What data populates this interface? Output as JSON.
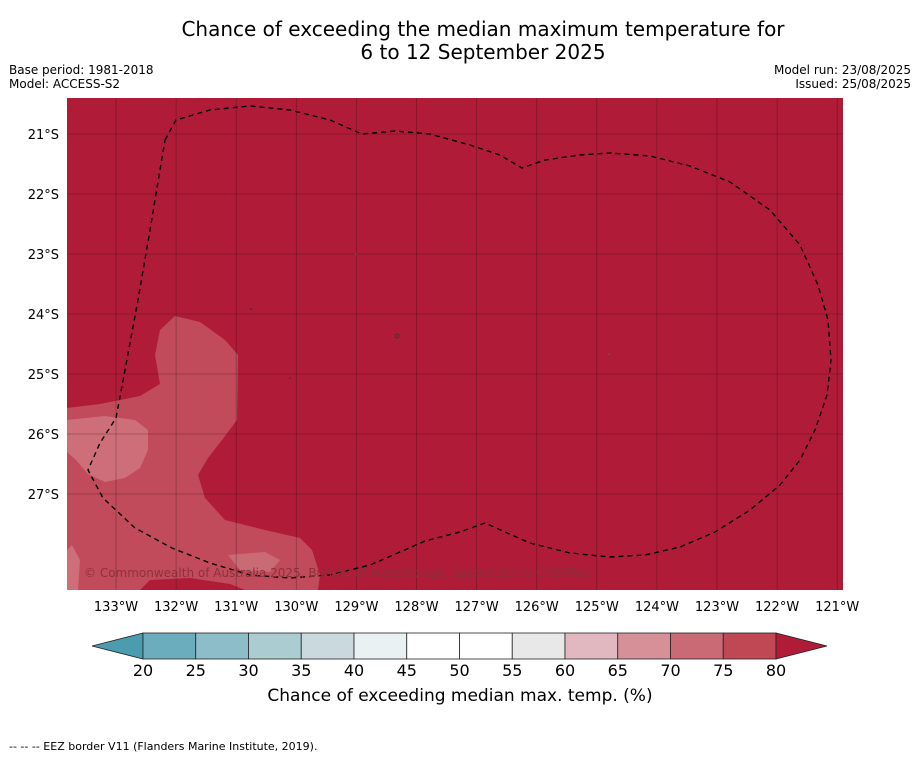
{
  "title": {
    "line1": "Chance of exceeding the median maximum temperature for",
    "line2": "6 to 12 September 2025"
  },
  "meta": {
    "base_period": "Base period: 1981-2018",
    "model": "Model: ACCESS-S2",
    "model_run": "Model run: 23/08/2025",
    "issued": "Issued: 25/08/2025"
  },
  "map": {
    "lat_labels": [
      "21°S",
      "22°S",
      "23°S",
      "24°S",
      "25°S",
      "26°S",
      "27°S"
    ],
    "lon_labels": [
      "133°W",
      "132°W",
      "131°W",
      "130°W",
      "129°W",
      "128°W",
      "127°W",
      "126°W",
      "125°W",
      "124°W",
      "123°W",
      "122°W",
      "121°W"
    ],
    "copyright": "© Commonwealth of Australia 2025, Bureau of Meteorology, supported by COSPPac",
    "colors": {
      "c80": "#b01c38",
      "c75": "#c14b5a",
      "c70": "#cd6e79"
    }
  },
  "colorbar": {
    "tick_labels": [
      "20",
      "25",
      "30",
      "35",
      "40",
      "45",
      "50",
      "55",
      "60",
      "65",
      "70",
      "75",
      "80"
    ],
    "bins": [
      "#4a9cae",
      "#6cadbd",
      "#8cbdc8",
      "#abcdd2",
      "#cad9dd",
      "#eaf1f3",
      "#ffffff",
      "#ffffff",
      "#e8e8e8",
      "#e1b8bf",
      "#d59098",
      "#c96a75",
      "#c04754",
      "#b01c38"
    ],
    "title": "Chance of exceeding median max. temp. (%)"
  },
  "footnote": "--  --  -- EEZ border V11 (Flanders Marine Institute, 2019)."
}
